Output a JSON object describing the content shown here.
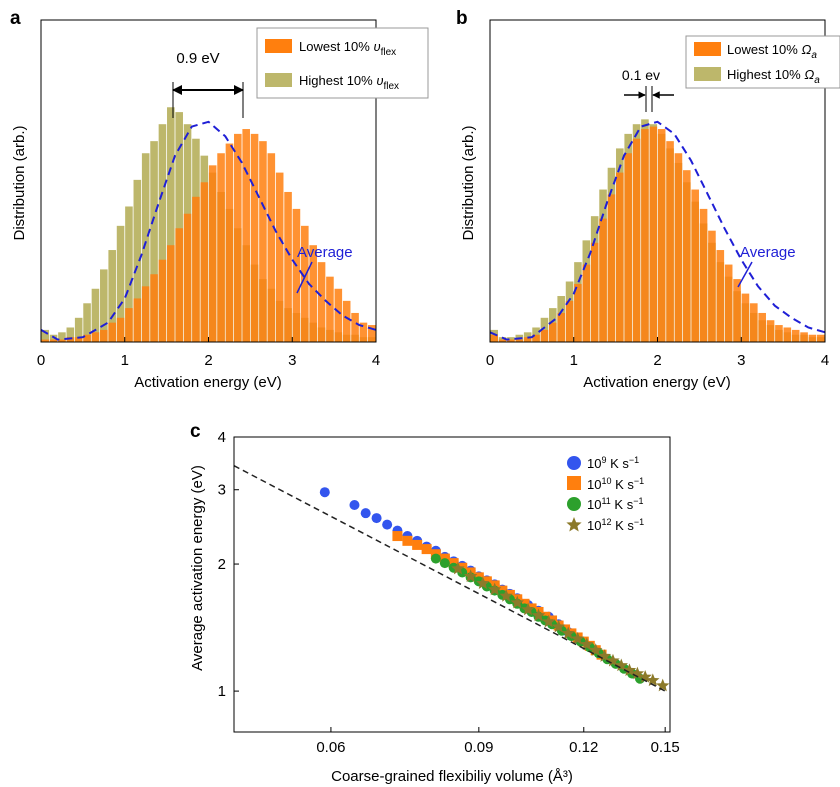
{
  "colors": {
    "orange": "#ff7f0e",
    "olive": "#bdb76b",
    "average": "#1f1fd6",
    "blue": "#3355ee",
    "green": "#2ca02c",
    "star": "#8c7a2a"
  },
  "panel_a": {
    "letter": "a",
    "annotation": "0.9 eV",
    "average_label": "Average",
    "chart_data": {
      "type": "bar",
      "title": "",
      "xlabel": "Activation energy (eV)",
      "ylabel": "Distribution (arb.)",
      "xlim": [
        0,
        4
      ],
      "xticks": [
        "0",
        "1",
        "2",
        "3",
        "4"
      ],
      "bin_width": 0.1,
      "legend_position": "top-right",
      "series": [
        {
          "name": "Lowest 10% υflex",
          "color": "#ff7f0e",
          "x": [
            0.05,
            0.15,
            0.25,
            0.35,
            0.45,
            0.55,
            0.65,
            0.75,
            0.85,
            0.95,
            1.05,
            1.15,
            1.25,
            1.35,
            1.45,
            1.55,
            1.65,
            1.75,
            1.85,
            1.95,
            2.05,
            2.15,
            2.25,
            2.35,
            2.45,
            2.55,
            2.65,
            2.75,
            2.85,
            2.95,
            3.05,
            3.15,
            3.25,
            3.35,
            3.45,
            3.55,
            3.65,
            3.75,
            3.85,
            3.95
          ],
          "values": [
            0.01,
            0.01,
            0.01,
            0.02,
            0.02,
            0.03,
            0.04,
            0.05,
            0.08,
            0.1,
            0.14,
            0.18,
            0.23,
            0.28,
            0.34,
            0.4,
            0.47,
            0.53,
            0.6,
            0.66,
            0.73,
            0.78,
            0.82,
            0.86,
            0.88,
            0.86,
            0.83,
            0.78,
            0.7,
            0.62,
            0.55,
            0.48,
            0.4,
            0.33,
            0.27,
            0.22,
            0.17,
            0.12,
            0.08,
            0.07
          ]
        },
        {
          "name": "Highest 10% υflex",
          "color": "#bdb76b",
          "x": [
            0.05,
            0.15,
            0.25,
            0.35,
            0.45,
            0.55,
            0.65,
            0.75,
            0.85,
            0.95,
            1.05,
            1.15,
            1.25,
            1.35,
            1.45,
            1.55,
            1.65,
            1.75,
            1.85,
            1.95,
            2.05,
            2.15,
            2.25,
            2.35,
            2.45,
            2.55,
            2.65,
            2.75,
            2.85,
            2.95,
            3.05,
            3.15,
            3.25,
            3.35,
            3.45,
            3.55,
            3.65,
            3.75,
            3.85,
            3.95
          ],
          "values": [
            0.05,
            0.03,
            0.04,
            0.06,
            0.1,
            0.16,
            0.22,
            0.3,
            0.38,
            0.48,
            0.56,
            0.67,
            0.78,
            0.83,
            0.9,
            0.97,
            0.95,
            0.9,
            0.84,
            0.77,
            0.7,
            0.62,
            0.55,
            0.47,
            0.4,
            0.32,
            0.26,
            0.22,
            0.17,
            0.14,
            0.12,
            0.1,
            0.08,
            0.06,
            0.05,
            0.04,
            0.03,
            0.03,
            0.02,
            0.02
          ]
        },
        {
          "name": "Average",
          "type": "line",
          "color": "#1f1fd6",
          "x": [
            0,
            0.2,
            0.5,
            0.8,
            1.0,
            1.2,
            1.4,
            1.6,
            1.8,
            2.0,
            2.2,
            2.4,
            2.6,
            2.8,
            3.0,
            3.2,
            3.4,
            3.6,
            3.8,
            4.0
          ],
          "values": [
            0.05,
            0.01,
            0.02,
            0.08,
            0.18,
            0.36,
            0.57,
            0.77,
            0.89,
            0.91,
            0.85,
            0.74,
            0.6,
            0.46,
            0.34,
            0.24,
            0.17,
            0.11,
            0.07,
            0.05
          ]
        }
      ]
    }
  },
  "panel_b": {
    "letter": "b",
    "annotation": "0.1 ev",
    "average_label": "Average",
    "chart_data": {
      "type": "bar",
      "title": "",
      "xlabel": "Activation energy (eV)",
      "ylabel": "Distribution (arb.)",
      "xlim": [
        0,
        4
      ],
      "xticks": [
        "0",
        "1",
        "2",
        "3",
        "4"
      ],
      "bin_width": 0.1,
      "legend_position": "top-right",
      "series": [
        {
          "name": "Lowest 10% Ωa",
          "color": "#ff7f0e",
          "x": [
            0.05,
            0.15,
            0.25,
            0.35,
            0.45,
            0.55,
            0.65,
            0.75,
            0.85,
            0.95,
            1.05,
            1.15,
            1.25,
            1.35,
            1.45,
            1.55,
            1.65,
            1.75,
            1.85,
            1.95,
            2.05,
            2.15,
            2.25,
            2.35,
            2.45,
            2.55,
            2.65,
            2.75,
            2.85,
            2.95,
            3.05,
            3.15,
            3.25,
            3.35,
            3.45,
            3.55,
            3.65,
            3.75,
            3.85,
            3.95
          ],
          "values": [
            0.03,
            0.01,
            0.01,
            0.01,
            0.02,
            0.03,
            0.05,
            0.08,
            0.12,
            0.17,
            0.24,
            0.32,
            0.41,
            0.51,
            0.61,
            0.7,
            0.78,
            0.84,
            0.88,
            0.89,
            0.88,
            0.83,
            0.78,
            0.71,
            0.63,
            0.55,
            0.46,
            0.38,
            0.32,
            0.26,
            0.2,
            0.16,
            0.12,
            0.09,
            0.07,
            0.06,
            0.05,
            0.04,
            0.03,
            0.03
          ]
        },
        {
          "name": "Highest 10% Ωa",
          "color": "#bdb76b",
          "x": [
            0.05,
            0.15,
            0.25,
            0.35,
            0.45,
            0.55,
            0.65,
            0.75,
            0.85,
            0.95,
            1.05,
            1.15,
            1.25,
            1.35,
            1.45,
            1.55,
            1.65,
            1.75,
            1.85,
            1.95,
            2.05,
            2.15,
            2.25,
            2.35,
            2.45,
            2.55,
            2.65,
            2.75,
            2.85,
            2.95,
            3.05,
            3.15,
            3.25,
            3.35,
            3.45,
            3.55,
            3.65,
            3.75,
            3.85,
            3.95
          ],
          "values": [
            0.05,
            0.02,
            0.02,
            0.03,
            0.04,
            0.06,
            0.1,
            0.14,
            0.19,
            0.25,
            0.33,
            0.42,
            0.52,
            0.63,
            0.72,
            0.8,
            0.86,
            0.9,
            0.92,
            0.9,
            0.86,
            0.8,
            0.74,
            0.66,
            0.58,
            0.49,
            0.41,
            0.33,
            0.27,
            0.21,
            0.16,
            0.12,
            0.09,
            0.07,
            0.05,
            0.04,
            0.03,
            0.03,
            0.02,
            0.02
          ]
        },
        {
          "name": "Average",
          "type": "line",
          "color": "#1f1fd6",
          "x": [
            0,
            0.2,
            0.5,
            0.8,
            1.0,
            1.2,
            1.4,
            1.6,
            1.8,
            2.0,
            2.2,
            2.4,
            2.6,
            2.8,
            3.0,
            3.2,
            3.4,
            3.6,
            3.8,
            4.0
          ],
          "values": [
            0.04,
            0.01,
            0.02,
            0.1,
            0.2,
            0.37,
            0.58,
            0.77,
            0.89,
            0.91,
            0.86,
            0.75,
            0.61,
            0.47,
            0.34,
            0.23,
            0.15,
            0.1,
            0.06,
            0.04
          ]
        }
      ]
    }
  },
  "panel_c": {
    "letter": "c",
    "chart_data": {
      "type": "scatter",
      "title": "",
      "xlabel": "Coarse-grained flexibiliy volume (Å³)",
      "ylabel": "Average activation energy (eV)",
      "xscale": "log",
      "yscale": "log",
      "xlim": [
        0.046,
        0.152
      ],
      "ylim": [
        0.8,
        4
      ],
      "xticks": [
        "0.06",
        "0.09",
        "0.12",
        "0.15"
      ],
      "yticks": [
        "1",
        "2",
        "3",
        "4"
      ],
      "legend_position": "top-right",
      "fit_line": {
        "style": "dashed",
        "x": [
          0.046,
          0.15
        ],
        "y": [
          3.42,
          1.0
        ]
      },
      "series": [
        {
          "name": "10⁹ K s⁻¹",
          "marker": "circle",
          "color": "#3355ee",
          "x": [
            0.059,
            0.064,
            0.066,
            0.068,
            0.07,
            0.072,
            0.074,
            0.076,
            0.078,
            0.08,
            0.082,
            0.084,
            0.086,
            0.088,
            0.09,
            0.092,
            0.094,
            0.096,
            0.098,
            0.1,
            0.103,
            0.106,
            0.109,
            0.112,
            0.115,
            0.118
          ],
          "y": [
            2.96,
            2.76,
            2.64,
            2.57,
            2.48,
            2.4,
            2.33,
            2.27,
            2.2,
            2.15,
            2.08,
            2.03,
            1.98,
            1.93,
            1.87,
            1.83,
            1.79,
            1.74,
            1.7,
            1.66,
            1.6,
            1.55,
            1.5,
            1.44,
            1.38,
            1.34
          ]
        },
        {
          "name": "10¹⁰ K s⁻¹",
          "marker": "square",
          "color": "#ff7f0e",
          "x": [
            0.072,
            0.074,
            0.076,
            0.078,
            0.08,
            0.082,
            0.084,
            0.086,
            0.088,
            0.09,
            0.092,
            0.094,
            0.096,
            0.098,
            0.1,
            0.102,
            0.104,
            0.106,
            0.108,
            0.11,
            0.112,
            0.114,
            0.116,
            0.118,
            0.12,
            0.122,
            0.124,
            0.126
          ],
          "y": [
            2.33,
            2.27,
            2.22,
            2.17,
            2.11,
            2.06,
            2.01,
            1.96,
            1.91,
            1.86,
            1.82,
            1.78,
            1.73,
            1.69,
            1.65,
            1.61,
            1.57,
            1.54,
            1.5,
            1.47,
            1.43,
            1.4,
            1.37,
            1.34,
            1.31,
            1.28,
            1.25,
            1.22
          ]
        },
        {
          "name": "10¹¹ K s⁻¹",
          "marker": "circle",
          "color": "#2ca02c",
          "x": [
            0.08,
            0.082,
            0.084,
            0.086,
            0.088,
            0.09,
            0.092,
            0.094,
            0.096,
            0.098,
            0.1,
            0.102,
            0.104,
            0.106,
            0.108,
            0.11,
            0.113,
            0.116,
            0.119,
            0.122,
            0.125,
            0.128,
            0.131,
            0.134,
            0.137,
            0.14
          ],
          "y": [
            2.06,
            2.01,
            1.96,
            1.91,
            1.86,
            1.82,
            1.77,
            1.73,
            1.69,
            1.65,
            1.61,
            1.57,
            1.54,
            1.5,
            1.47,
            1.44,
            1.39,
            1.35,
            1.31,
            1.27,
            1.23,
            1.19,
            1.16,
            1.13,
            1.1,
            1.07
          ]
        },
        {
          "name": "10¹² K s⁻¹",
          "marker": "star",
          "color": "#8c7a2a",
          "x": [
            0.085,
            0.088,
            0.091,
            0.094,
            0.097,
            0.1,
            0.103,
            0.106,
            0.109,
            0.112,
            0.115,
            0.118,
            0.121,
            0.124,
            0.127,
            0.13,
            0.133,
            0.136,
            0.139,
            0.142,
            0.145,
            0.149
          ],
          "y": [
            1.95,
            1.87,
            1.8,
            1.74,
            1.68,
            1.62,
            1.56,
            1.51,
            1.46,
            1.42,
            1.37,
            1.33,
            1.29,
            1.25,
            1.21,
            1.18,
            1.15,
            1.12,
            1.1,
            1.08,
            1.06,
            1.03
          ]
        }
      ]
    }
  }
}
